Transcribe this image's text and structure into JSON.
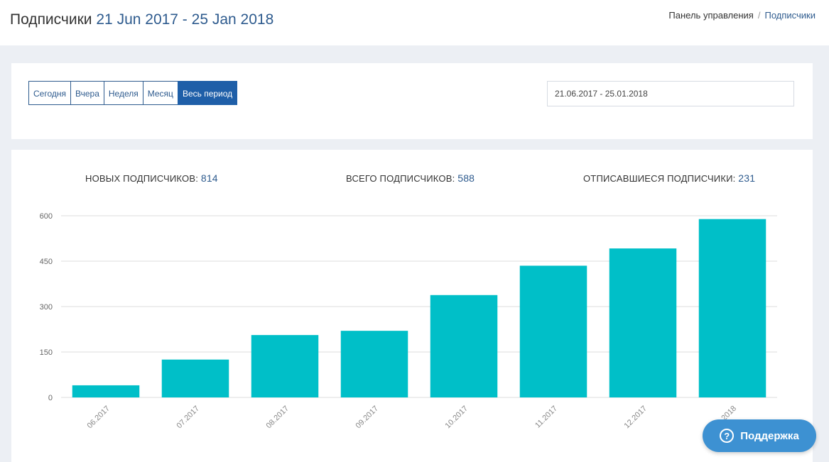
{
  "header": {
    "title": "Подписчики",
    "date_range": "21 Jun 2017 - 25 Jan 2018",
    "breadcrumb": [
      "Панель управления",
      "Подписчики"
    ]
  },
  "filters": {
    "periods": [
      {
        "label": "Сегодня",
        "active": false
      },
      {
        "label": "Вчера",
        "active": false
      },
      {
        "label": "Неделя",
        "active": false
      },
      {
        "label": "Месяц",
        "active": false
      },
      {
        "label": "Весь период",
        "active": true
      }
    ],
    "date_input_value": "21.06.2017 - 25.01.2018"
  },
  "stats": {
    "new_label": "НОВЫХ ПОДПИСЧИКОВ:",
    "new_value": "814",
    "total_label": "ВСЕГО ПОДПИСЧИКОВ:",
    "total_value": "588",
    "unsub_label": "ОТПИСАВШИЕСЯ ПОДПИСЧИКИ:",
    "unsub_value": "231"
  },
  "chart_data": {
    "type": "bar",
    "categories": [
      "06.2017",
      "07.2017",
      "08.2017",
      "09.2017",
      "10.2017",
      "11.2017",
      "12.2017",
      "01.2018"
    ],
    "values": [
      40,
      125,
      206,
      220,
      338,
      435,
      492,
      589
    ],
    "ylim": [
      0,
      600
    ],
    "yticks": [
      0,
      150,
      300,
      450,
      600
    ],
    "grid": true,
    "bar_color": "#00bfc8"
  },
  "support": {
    "label": "Поддержка",
    "icon": "question-circle-icon"
  },
  "colors": {
    "accent": "#2e5b8e",
    "active_button": "#1f5fa8",
    "support_button": "#3d91d2"
  }
}
